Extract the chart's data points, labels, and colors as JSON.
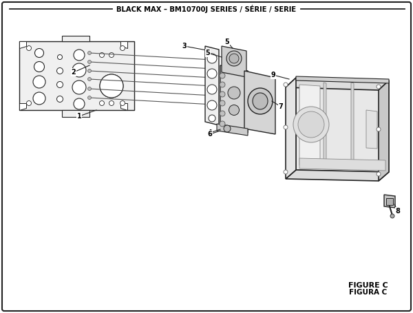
{
  "title": "BLACK MAX – BM10700J SERIES / SÉRIE / SERIE",
  "figure_label": "FIGURE C",
  "figure_label2": "FIGURA C",
  "bg_color": "white",
  "lc": "#222222",
  "part_fill": "#e8e8e8",
  "part_edge": "#222222"
}
